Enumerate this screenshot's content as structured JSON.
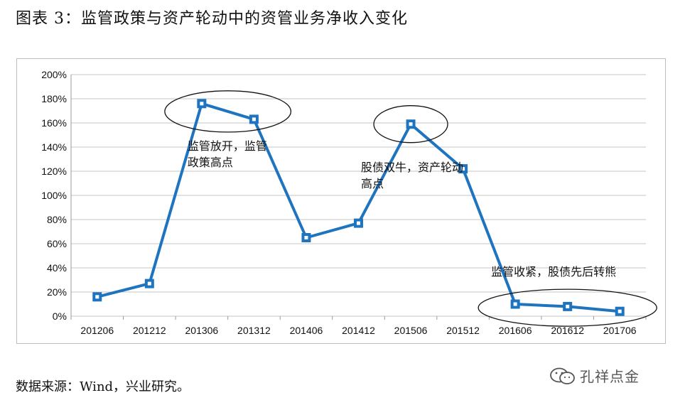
{
  "page": {
    "title": "图表 3：监管政策与资产轮动中的资管业务净收入变化",
    "source": "数据来源：Wind，兴业研究。",
    "watermark": "孔祥点金"
  },
  "colors": {
    "series": "#1f74c0",
    "marker_fill": "#ffffff",
    "grid": "#c6c6c6",
    "axis_text": "#111111",
    "ellipse": "#111111"
  },
  "icons": {
    "watermark": "wechat-icon"
  },
  "chart_data": {
    "type": "line",
    "title": "",
    "xlabel": "",
    "ylabel": "",
    "categories": [
      "201206",
      "201212",
      "201306",
      "201312",
      "201406",
      "201412",
      "201506",
      "201512",
      "201606",
      "201612",
      "201706"
    ],
    "series": [
      {
        "values": [
          16,
          27,
          176,
          163,
          65,
          77,
          159,
          122,
          10,
          8,
          4
        ]
      }
    ],
    "ylim": [
      0,
      200
    ],
    "yticks": [
      "0%",
      "20%",
      "40%",
      "60%",
      "80%",
      "100%",
      "120%",
      "140%",
      "160%",
      "180%",
      "200%"
    ],
    "y_format": "percent",
    "grid": true,
    "legend": "none",
    "annotations": [
      {
        "text": [
          "监管放开，监管",
          "政策高点"
        ],
        "anchor_index": 2,
        "ellipse_indices": [
          2,
          3
        ]
      },
      {
        "text": [
          "股债双牛，资产轮动",
          "高点"
        ],
        "anchor_index": 6,
        "ellipse_indices": [
          6
        ]
      },
      {
        "text": [
          "监管收紧，股债先后转熊"
        ],
        "anchor_index": 8,
        "ellipse_indices": [
          8,
          9,
          10
        ]
      }
    ]
  }
}
